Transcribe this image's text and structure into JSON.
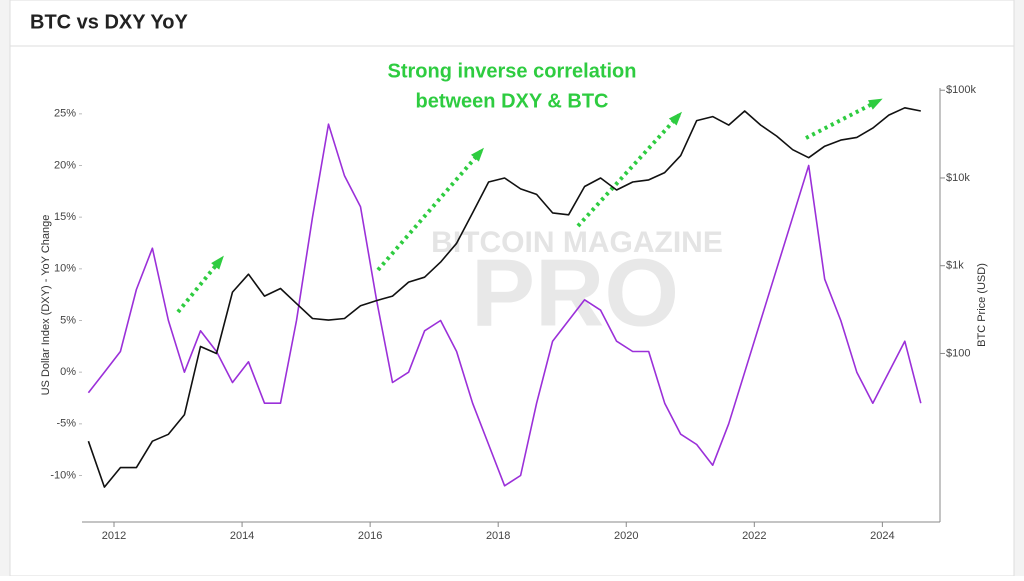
{
  "chart_data": {
    "type": "line",
    "title": "BTC vs DXY YoY",
    "annotation": [
      "Strong inverse correlation",
      "between DXY & BTC"
    ],
    "watermark": [
      "BITCOIN MAGAZINE",
      "PRO"
    ],
    "y_label": "US Dollar Index (DXY) - YoY Change",
    "y2_label": "BTC Price (USD)",
    "x": [
      2011.6,
      2011.85,
      2012.1,
      2012.35,
      2012.6,
      2012.85,
      2013.1,
      2013.35,
      2013.6,
      2013.85,
      2014.1,
      2014.35,
      2014.6,
      2014.85,
      2015.1,
      2015.35,
      2015.6,
      2015.85,
      2016.1,
      2016.35,
      2016.6,
      2016.85,
      2017.1,
      2017.35,
      2017.6,
      2017.85,
      2018.1,
      2018.35,
      2018.6,
      2018.85,
      2019.1,
      2019.35,
      2019.6,
      2019.85,
      2020.1,
      2020.35,
      2020.6,
      2020.85,
      2021.1,
      2021.35,
      2021.6,
      2021.85,
      2022.1,
      2022.35,
      2022.6,
      2022.85,
      2023.1,
      2023.35,
      2023.6,
      2023.85,
      2024.1,
      2024.35,
      2024.6
    ],
    "series": [
      {
        "name": "DXY YoY",
        "color": "#9b30d9",
        "axis": "y",
        "values": [
          -2,
          0,
          2,
          8,
          12,
          5,
          0,
          4,
          2,
          -1,
          1,
          -3,
          -3,
          5,
          15,
          24,
          19,
          16,
          7,
          -1,
          0,
          4,
          5,
          2,
          -3,
          -7,
          -11,
          -10,
          -3,
          3,
          5,
          7,
          6,
          3,
          2,
          2,
          -3,
          -6,
          -7,
          -9,
          -5,
          0,
          5,
          10,
          15,
          20,
          9,
          5,
          0,
          -3,
          0,
          3,
          -3
        ]
      },
      {
        "name": "BTC Price",
        "color": "#111111",
        "axis": "y2",
        "values": [
          10,
          3,
          5,
          5,
          10,
          12,
          20,
          120,
          100,
          500,
          800,
          450,
          550,
          370,
          250,
          240,
          250,
          350,
          400,
          450,
          650,
          740,
          1100,
          1800,
          4000,
          9000,
          10000,
          7500,
          6500,
          4000,
          3800,
          8000,
          10000,
          7300,
          9000,
          9500,
          11500,
          18000,
          45000,
          50000,
          40000,
          58000,
          40000,
          30000,
          21000,
          17000,
          23000,
          27000,
          29000,
          37000,
          52000,
          63000,
          58000
        ]
      }
    ],
    "xlim": [
      2011.5,
      2024.9
    ],
    "xticks": [
      2012,
      2014,
      2016,
      2018,
      2020,
      2022,
      2024
    ],
    "ylim": [
      -14.5,
      27.5
    ],
    "yticks": [
      {
        "value": -10,
        "label": "-10%"
      },
      {
        "value": -5,
        "label": "-5%"
      },
      {
        "value": 0,
        "label": "0%"
      },
      {
        "value": 5,
        "label": "5%"
      },
      {
        "value": 10,
        "label": "10%"
      },
      {
        "value": 15,
        "label": "15%"
      },
      {
        "value": 20,
        "label": "20%"
      },
      {
        "value": 25,
        "label": "25%"
      }
    ],
    "y2lim": [
      1.2,
      106000
    ],
    "y2log": true,
    "y2ticks": [
      {
        "value": 100,
        "label": "$100"
      },
      {
        "value": 1000,
        "label": "$1k"
      },
      {
        "value": 10000,
        "label": "$10k"
      },
      {
        "value": 100000,
        "label": "$100k"
      }
    ],
    "annotation_color": "#2ecc40"
  }
}
